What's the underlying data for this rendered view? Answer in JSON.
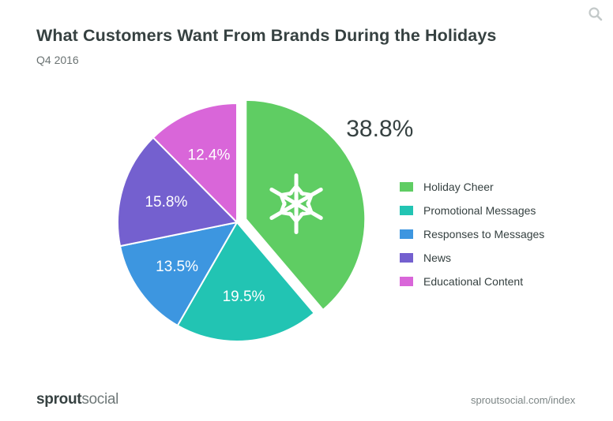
{
  "header": {
    "title": "What Customers Want From Brands During the Holidays",
    "subtitle": "Q4 2016"
  },
  "footer": {
    "brand_prefix": "sprout",
    "brand_suffix": "social",
    "url": "sproutsocial.com/index"
  },
  "icons": {
    "search": "search-icon",
    "highlight": "snowflake-icon"
  },
  "chart_data": {
    "type": "pie",
    "title": "What Customers Want From Brands During the Holidays",
    "subtitle": "Q4 2016",
    "legend_position": "right",
    "exploded_slice": "Holiday Cheer",
    "slices": [
      {
        "label": "Holiday Cheer",
        "value": 38.8,
        "display": "38.8%",
        "color": "#5fcd63"
      },
      {
        "label": "Promotional Messages",
        "value": 19.5,
        "display": "19.5%",
        "color": "#22c4b3"
      },
      {
        "label": "Responses to Messages",
        "value": 13.5,
        "display": "13.5%",
        "color": "#3d96e0"
      },
      {
        "label": "News",
        "value": 15.8,
        "display": "15.8%",
        "color": "#7460cf"
      },
      {
        "label": "Educational Content",
        "value": 12.4,
        "display": "12.4%",
        "color": "#d966d9"
      }
    ]
  }
}
